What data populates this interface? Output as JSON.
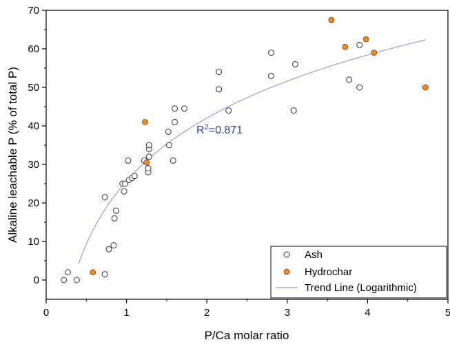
{
  "chart_data": {
    "type": "scatter",
    "title": "",
    "xlabel": "P/Ca molar ratio",
    "ylabel": "Alkaline leachable P (% of total P)",
    "xlim": [
      0,
      5
    ],
    "ylim": [
      -5,
      70
    ],
    "x_ticks": [
      0,
      1,
      2,
      3,
      4,
      5
    ],
    "y_ticks": [
      0,
      10,
      20,
      30,
      40,
      50,
      60,
      70
    ],
    "grid": false,
    "legend_position": "bottom-right",
    "series": [
      {
        "name": "Ash",
        "marker": "hollow-circle",
        "color": "#333333",
        "points": [
          [
            0.22,
            0
          ],
          [
            0.27,
            2
          ],
          [
            0.38,
            0
          ],
          [
            0.73,
            21.5
          ],
          [
            0.73,
            1.5
          ],
          [
            0.78,
            8
          ],
          [
            0.84,
            9
          ],
          [
            0.85,
            16
          ],
          [
            0.87,
            18
          ],
          [
            0.95,
            25
          ],
          [
            0.98,
            25
          ],
          [
            0.97,
            23
          ],
          [
            1.02,
            31
          ],
          [
            1.03,
            26
          ],
          [
            1.07,
            26.5
          ],
          [
            1.1,
            27
          ],
          [
            1.22,
            31
          ],
          [
            1.27,
            28
          ],
          [
            1.27,
            29
          ],
          [
            1.28,
            32
          ],
          [
            1.28,
            34
          ],
          [
            1.28,
            35
          ],
          [
            1.52,
            38.5
          ],
          [
            1.53,
            35
          ],
          [
            1.58,
            31
          ],
          [
            1.6,
            41
          ],
          [
            1.6,
            44.5
          ],
          [
            1.72,
            44.5
          ],
          [
            2.15,
            54
          ],
          [
            2.15,
            49.5
          ],
          [
            2.27,
            44
          ],
          [
            2.8,
            59
          ],
          [
            2.8,
            53
          ],
          [
            3.08,
            44
          ],
          [
            3.1,
            56
          ],
          [
            3.77,
            52
          ],
          [
            3.9,
            50
          ],
          [
            3.9,
            61
          ]
        ]
      },
      {
        "name": "Hydrochar",
        "marker": "filled-circle",
        "color": "#f08c1e",
        "points": [
          [
            0.58,
            2
          ],
          [
            1.23,
            41
          ],
          [
            1.25,
            30.5
          ],
          [
            3.55,
            67.5
          ],
          [
            3.72,
            60.5
          ],
          [
            3.98,
            62.5
          ],
          [
            4.08,
            59
          ],
          [
            4.72,
            50
          ]
        ]
      }
    ],
    "trend_line": {
      "name": "Trend Line (Logarithmic)",
      "color": "#9b9be8",
      "x_range": [
        0.4,
        4.72
      ],
      "a": 25.7,
      "b": 23.6
    },
    "annotation": {
      "label": "R",
      "superscript": "2",
      "value": "=0.871",
      "color": "#2b3bb0",
      "x": 1.87,
      "y": 38
    }
  }
}
